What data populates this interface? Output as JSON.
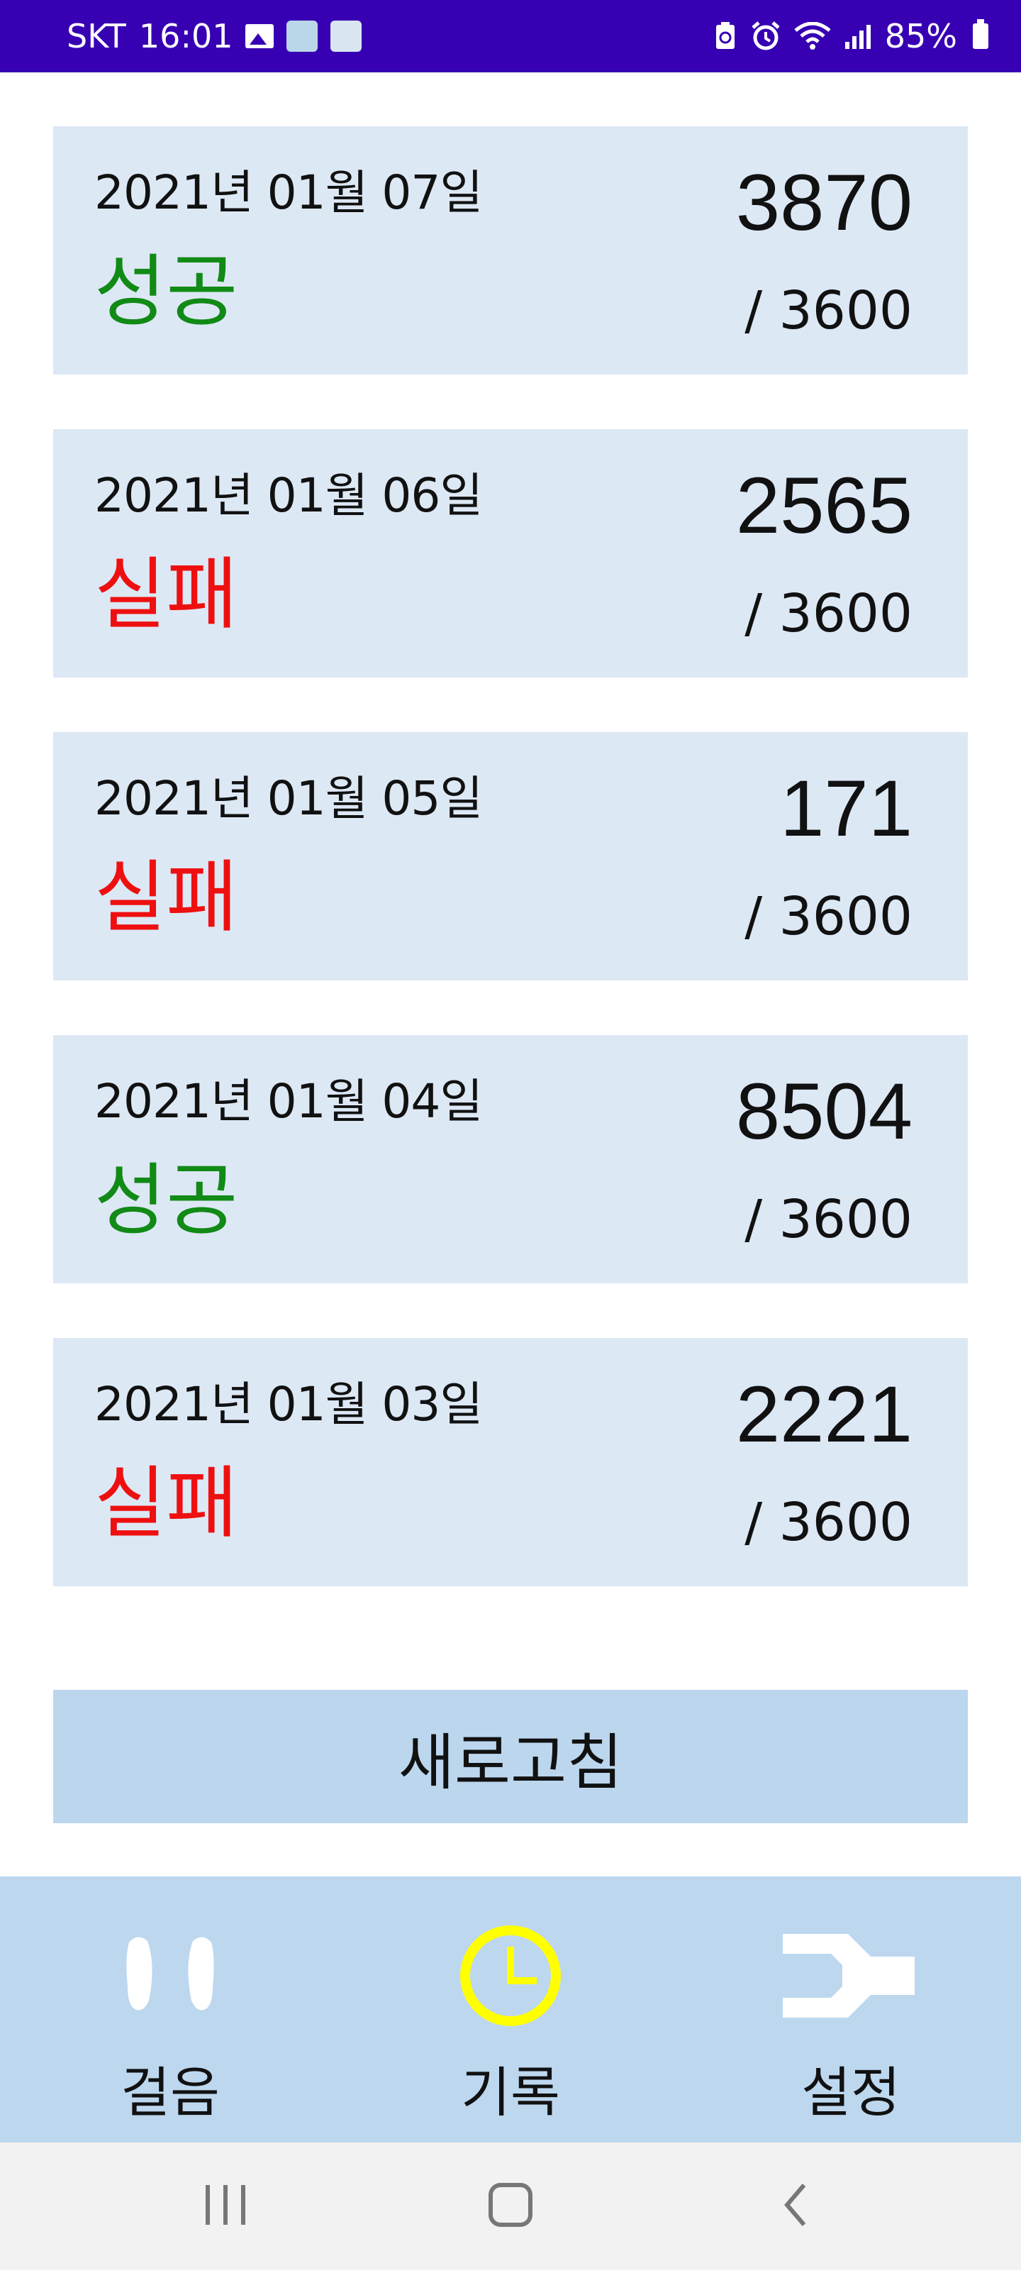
{
  "status_bar": {
    "carrier": "SKT",
    "time": "16:01",
    "battery": "85%",
    "background": "#3700b3"
  },
  "records": [
    {
      "date": "2021년 01월 07일",
      "result": "성공",
      "result_type": "success",
      "steps": "3870",
      "goal": "/ 3600"
    },
    {
      "date": "2021년 01월 06일",
      "result": "실패",
      "result_type": "fail",
      "steps": "2565",
      "goal": "/ 3600"
    },
    {
      "date": "2021년 01월 05일",
      "result": "실패",
      "result_type": "fail",
      "steps": "171",
      "goal": "/ 3600"
    },
    {
      "date": "2021년 01월 04일",
      "result": "성공",
      "result_type": "success",
      "steps": "8504",
      "goal": "/ 3600"
    },
    {
      "date": "2021년 01월 03일",
      "result": "실패",
      "result_type": "fail",
      "steps": "2221",
      "goal": "/ 3600"
    }
  ],
  "refresh_button": {
    "label": "새로고침"
  },
  "bottom_nav": {
    "items": [
      {
        "label": "걸음",
        "icon": "footprints-icon"
      },
      {
        "label": "기록",
        "icon": "clock-icon",
        "selected": true
      },
      {
        "label": "설정",
        "icon": "wrench-icon"
      }
    ],
    "selected_color": "#ffff00"
  },
  "system_nav": {
    "items": [
      "recent-apps-icon",
      "home-icon",
      "back-icon"
    ]
  },
  "colors": {
    "success": "#118a16",
    "fail": "#ee1010",
    "card_bg": "#dde8f5",
    "nav_bg": "#bdd7ef"
  }
}
